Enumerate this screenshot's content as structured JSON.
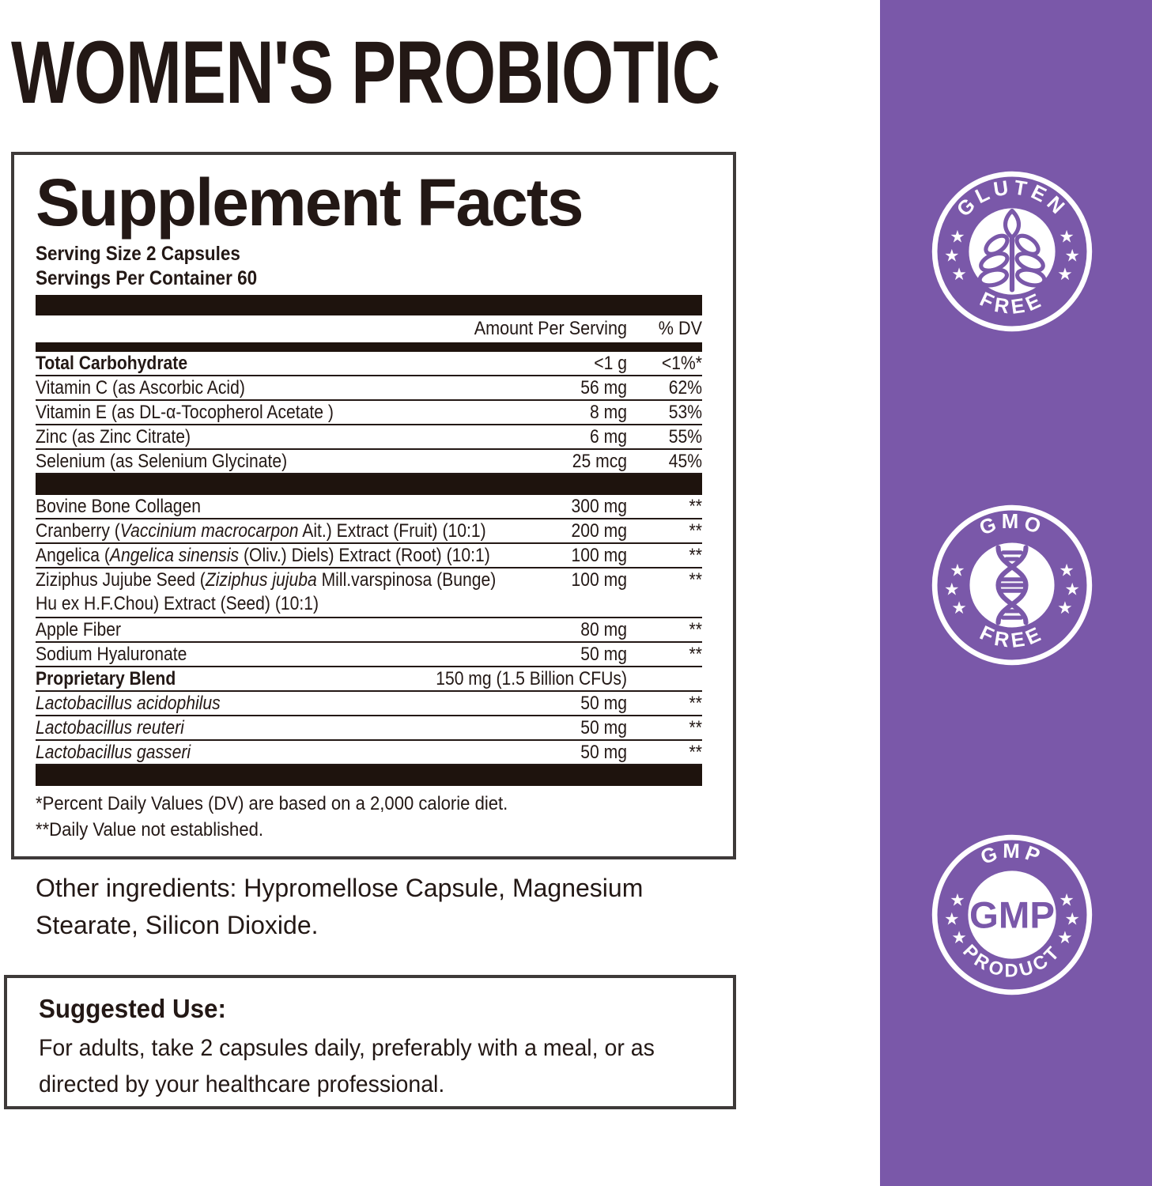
{
  "product_title": "WOMEN'S PROBIOTIC",
  "facts": {
    "title": "Supplement Facts",
    "serving_size": "Serving Size 2 Capsules",
    "servings_per_container": "Servings Per Container 60",
    "columns": {
      "amount": "Amount Per Serving",
      "dv": "% DV"
    },
    "rows": [
      {
        "name": [
          {
            "t": "Total Carbohydrate",
            "b": true
          }
        ],
        "amount": "<1 g",
        "dv": "<1%*"
      },
      {
        "name": [
          {
            "t": "Vitamin C (as Ascorbic Acid)"
          }
        ],
        "amount": "56 mg",
        "dv": "62%"
      },
      {
        "name": [
          {
            "t": "Vitamin E (as DL-α-Tocopherol Acetate )"
          }
        ],
        "amount": "8 mg",
        "dv": "53%"
      },
      {
        "name": [
          {
            "t": "Zinc (as Zinc Citrate)"
          }
        ],
        "amount": "6 mg",
        "dv": "55%"
      },
      {
        "name": [
          {
            "t": "Selenium (as Selenium Glycinate)"
          }
        ],
        "amount": "25 mcg",
        "dv": "45%"
      },
      {
        "bar": true
      },
      {
        "name": [
          {
            "t": "Bovine Bone Collagen"
          }
        ],
        "amount": "300 mg",
        "dv": "**"
      },
      {
        "name": [
          {
            "t": "Cranberry ("
          },
          {
            "t": "Vaccinium macrocarpon",
            "i": true
          },
          {
            "t": " Ait.) Extract (Fruit) (10:1)"
          }
        ],
        "amount": "200 mg",
        "dv": "**"
      },
      {
        "name": [
          {
            "t": "Angelica ("
          },
          {
            "t": "Angelica sinensis",
            "i": true
          },
          {
            "t": " (Oliv.) Diels) Extract (Root) (10:1)"
          }
        ],
        "amount": "100 mg",
        "dv": "**"
      },
      {
        "name": [
          {
            "t": "Ziziphus Jujube Seed ("
          },
          {
            "t": "Ziziphus jujuba",
            "i": true
          },
          {
            "t": " Mill.varspinosa (Bunge)"
          }
        ],
        "name2": "Hu ex H.F.Chou) Extract (Seed) (10:1)",
        "amount": "100 mg",
        "dv": "**"
      },
      {
        "name": [
          {
            "t": "Apple Fiber"
          }
        ],
        "amount": "80 mg",
        "dv": "**"
      },
      {
        "name": [
          {
            "t": "Sodium Hyaluronate"
          }
        ],
        "amount": "50 mg",
        "dv": "**"
      },
      {
        "name": [
          {
            "t": "Proprietary Blend",
            "b": true
          }
        ],
        "amount": "150 mg (1.5 Billion CFUs)",
        "dv": "",
        "wide": true
      },
      {
        "name": [
          {
            "t": "Lactobacillus acidophilus",
            "i": true
          }
        ],
        "amount": "50 mg",
        "dv": "**"
      },
      {
        "name": [
          {
            "t": "Lactobacillus reuteri",
            "i": true
          }
        ],
        "amount": "50 mg",
        "dv": "**"
      },
      {
        "name": [
          {
            "t": "Lactobacillus gasseri",
            "i": true
          }
        ],
        "amount": "50 mg",
        "dv": "**"
      },
      {
        "bar": true
      }
    ],
    "footnotes": [
      "*Percent Daily Values (DV) are based on a 2,000 calorie diet.",
      "**Daily Value not established."
    ]
  },
  "other_ingredients": "Other ingredients: Hypromellose Capsule, Magnesium Stearate, Silicon Dioxide.",
  "suggested_use": {
    "title": "Suggested Use:",
    "text": "For adults, take 2 capsules daily, preferably with a meal, or as directed by your healthcare professional."
  },
  "badges": [
    {
      "top": "GLUTEN",
      "bottom": "FREE",
      "icon": "wheat-icon"
    },
    {
      "top": "GMO",
      "bottom": "FREE",
      "icon": "dna-icon"
    },
    {
      "top": "GMP",
      "bottom": "PRODUCT",
      "icon": "gmp-monogram",
      "center_text": "GMP"
    }
  ],
  "colors": {
    "accent_purple": "#7a58a9",
    "ink": "#231815",
    "bar": "#1e130d"
  }
}
